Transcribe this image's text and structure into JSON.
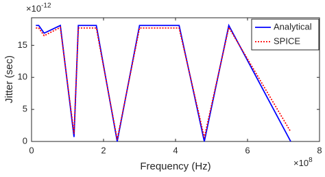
{
  "chart_data": {
    "type": "line",
    "xlabel": "Frequency (Hz)",
    "ylabel": "Jitter (sec)",
    "x_multiplier": {
      "base": "×10",
      "exponent": "8"
    },
    "y_multiplier": {
      "base": "×10",
      "exponent": "-12"
    },
    "x": [
      0.12,
      0.2,
      0.35,
      0.8,
      1.18,
      1.3,
      1.8,
      2.38,
      3.0,
      4.1,
      4.8,
      5.48,
      7.2
    ],
    "series": [
      {
        "name": "Analytical",
        "color": "#0000ff",
        "dash": "solid",
        "values": [
          18.1,
          18.1,
          16.9,
          18.1,
          0.7,
          18.1,
          18.1,
          0,
          18.1,
          18.1,
          0,
          18.1,
          0
        ]
      },
      {
        "name": "SPICE",
        "color": "#ff0000",
        "dash": "dotted",
        "values": [
          17.7,
          17.7,
          16.5,
          17.8,
          1.2,
          17.7,
          17.7,
          0.3,
          17.7,
          17.7,
          0.6,
          17.8,
          1.5
        ]
      }
    ],
    "xlim": [
      0,
      8
    ],
    "ylim": [
      0,
      19.3
    ],
    "xticks": [
      0,
      2,
      4,
      6,
      8
    ],
    "yticks": [
      0,
      5,
      10,
      15
    ],
    "grid": false,
    "legend": "top-right"
  }
}
